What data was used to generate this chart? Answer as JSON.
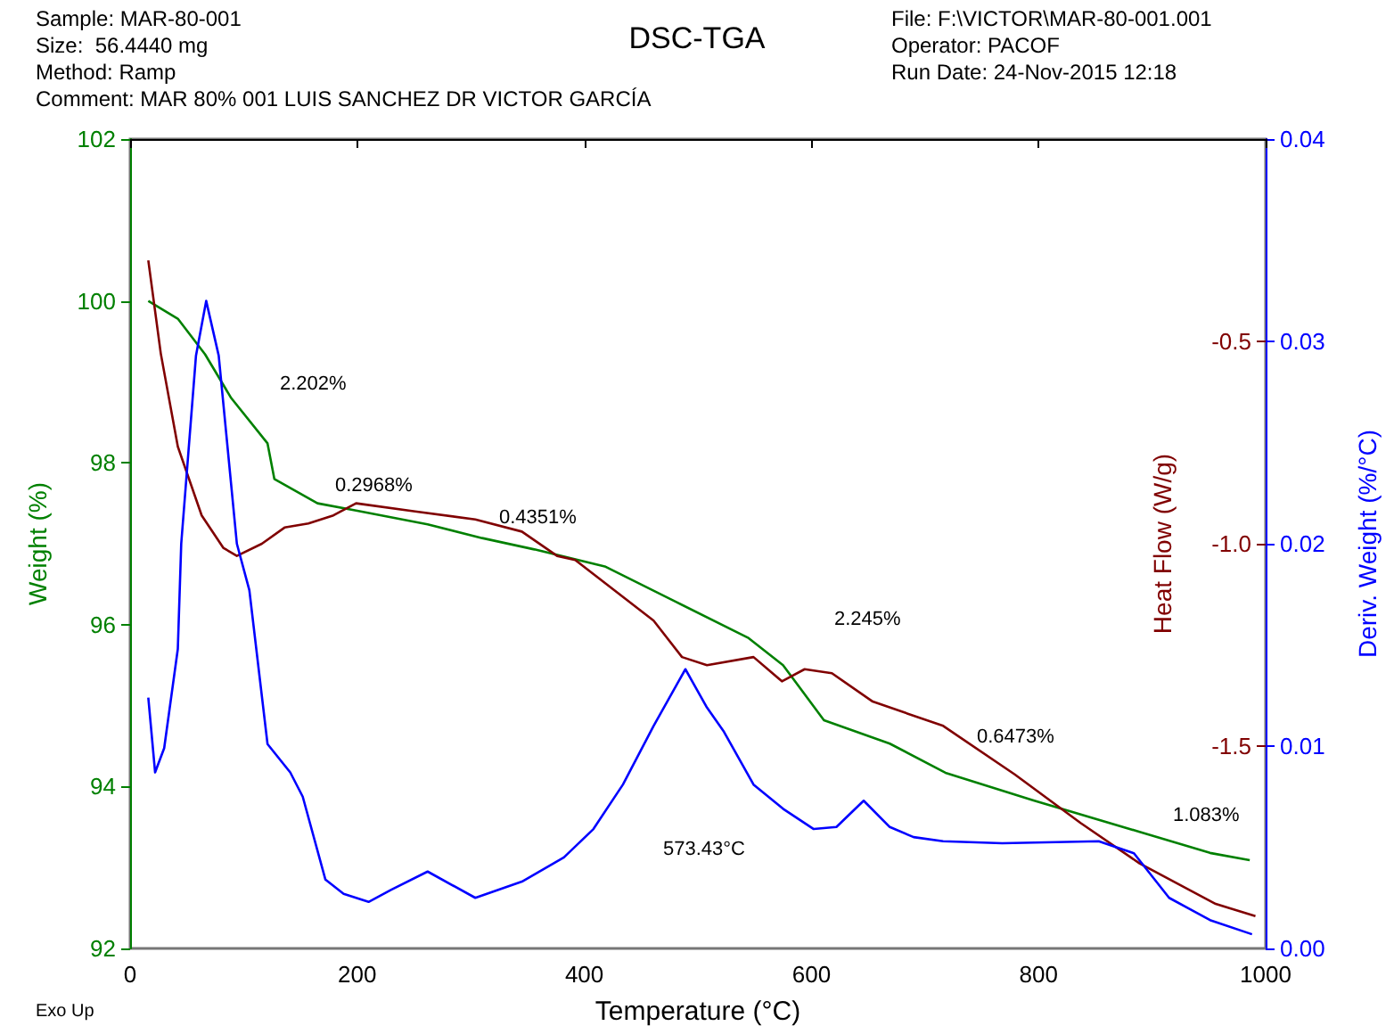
{
  "chart_data": {
    "type": "line",
    "title": "DSC-TGA",
    "xlabel": "Temperature (°C)",
    "ylabel": "Weight (%)",
    "y2label": "Heat Flow (W/g)",
    "y3label": "Deriv. Weight (%/°C)",
    "xlim": [
      0,
      1000
    ],
    "xticks": [
      0,
      200,
      400,
      600,
      800,
      1000
    ],
    "ylim": [
      92,
      102
    ],
    "yticks": [
      92,
      94,
      96,
      98,
      100,
      102
    ],
    "y2lim": [
      -2,
      0
    ],
    "y2ticks": [
      {
        "value": -0.5,
        "label": "-0.5"
      },
      {
        "value": -1,
        "label": "-1.0"
      },
      {
        "value": -1.5,
        "label": "-1.5"
      }
    ],
    "y3lim": [
      0,
      0.04
    ],
    "y3ticks": [
      {
        "value": 0,
        "label": "0.00"
      },
      0.01,
      0.02,
      0.03,
      0.04
    ],
    "grid": false,
    "marker": "none",
    "line_style": "solid",
    "series": [
      {
        "color": "#008000",
        "axis": "y",
        "x": [
          16,
          42,
          66,
          89,
          121,
          127,
          165,
          199,
          262,
          310,
          356,
          418,
          481,
          544,
          575,
          611,
          669,
          718,
          795,
          889,
          951,
          986
        ],
        "values": [
          100.0,
          99.78,
          99.34,
          98.8,
          98.24,
          97.8,
          97.5,
          97.41,
          97.24,
          97.07,
          96.93,
          96.72,
          96.28,
          95.84,
          95.5,
          94.82,
          94.53,
          94.17,
          93.83,
          93.44,
          93.18,
          93.09
        ]
      },
      {
        "color": "#800000",
        "axis": "y2",
        "x": [
          16,
          27,
          42,
          63,
          82,
          94,
          116,
          136,
          157,
          179,
          199,
          251,
          304,
          345,
          376,
          392,
          461,
          486,
          508,
          549,
          574,
          594,
          618,
          654,
          716,
          779,
          837,
          889,
          956,
          991
        ],
        "values": [
          -0.3,
          -0.53,
          -0.76,
          -0.93,
          -1.01,
          -1.03,
          -1.0,
          -0.96,
          -0.95,
          -0.93,
          -0.9,
          -0.92,
          -0.94,
          -0.97,
          -1.03,
          -1.04,
          -1.19,
          -1.28,
          -1.3,
          -1.28,
          -1.34,
          -1.31,
          -1.32,
          -1.39,
          -1.45,
          -1.57,
          -1.69,
          -1.79,
          -1.89,
          -1.92
        ]
      },
      {
        "color": "#0000ff",
        "axis": "y3",
        "x": [
          16,
          22,
          30,
          42,
          45,
          58,
          67,
          78,
          94,
          105,
          121,
          141,
          152,
          172,
          188,
          210,
          230,
          262,
          304,
          345,
          382,
          408,
          434,
          461,
          489,
          508,
          523,
          549,
          575,
          602,
          622,
          646,
          669,
          690,
          716,
          768,
          853,
          884,
          915,
          951,
          988
        ],
        "values": [
          0.0124,
          0.0087,
          0.0099,
          0.0148,
          0.02,
          0.0293,
          0.032,
          0.0293,
          0.02,
          0.0177,
          0.0101,
          0.0087,
          0.0075,
          0.0034,
          0.0027,
          0.0023,
          0.0029,
          0.0038,
          0.0025,
          0.0033,
          0.0045,
          0.0059,
          0.0081,
          0.011,
          0.0138,
          0.0119,
          0.0107,
          0.0081,
          0.0069,
          0.0059,
          0.006,
          0.0073,
          0.006,
          0.0055,
          0.0053,
          0.0052,
          0.0053,
          0.0047,
          0.0025,
          0.0014,
          0.0007
        ]
      }
    ],
    "annotations": [
      "Sample: MAR-80-001\nSize:  56.4440 mg\nMethod: Ramp\nComment: MAR 80% 001 LUIS SANCHEZ DR VICTOR GARCÍA",
      "File: F:\\VICTOR\\MAR-80-001.001\nOperator: PACOF\nRun Date: 24-Nov-2015 12:18",
      "Exo Up",
      "2.202%",
      "0.2968%",
      "0.4351%",
      "2.245%",
      "0.6473%",
      "1.083%",
      "573.43°C"
    ]
  }
}
